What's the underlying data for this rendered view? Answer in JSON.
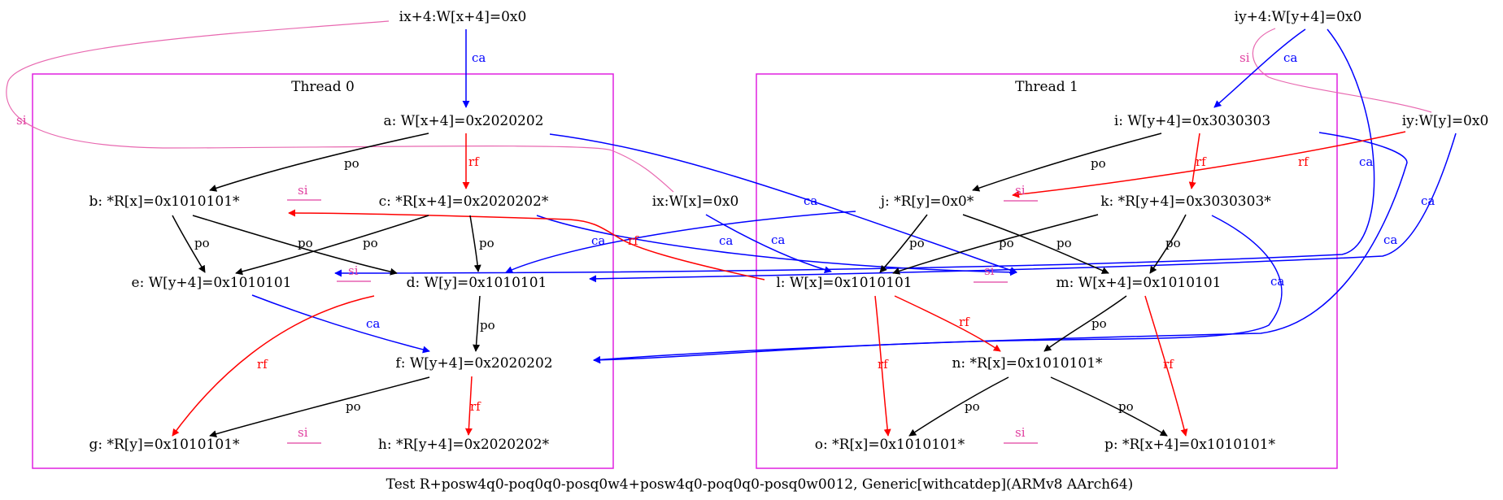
{
  "caption": "Test R+posw4q0-poq0q0-posq0w4+posw4q0-poq0q0-posq0w0012, Generic[withcatdep](ARMv8 AArch64)",
  "colors": {
    "cluster": "#e020e0",
    "po": "#000000",
    "rf": "#ff0000",
    "ca": "#0000ff",
    "si": "#e040a0"
  },
  "clusters": [
    {
      "id": "thread0",
      "label": "Thread 0"
    },
    {
      "id": "thread1",
      "label": "Thread 1"
    }
  ],
  "nodes": [
    {
      "id": "ix4",
      "label": "ix+4:W[x+4]=0x0"
    },
    {
      "id": "iy4",
      "label": "iy+4:W[y+4]=0x0"
    },
    {
      "id": "a",
      "label": "a: W[x+4]=0x2020202"
    },
    {
      "id": "ix",
      "label": "ix:W[x]=0x0"
    },
    {
      "id": "i",
      "label": "i: W[y+4]=0x3030303"
    },
    {
      "id": "iy",
      "label": "iy:W[y]=0x0"
    },
    {
      "id": "b",
      "label": "b: *R[x]=0x1010101*"
    },
    {
      "id": "c",
      "label": "c: *R[x+4]=0x2020202*"
    },
    {
      "id": "j",
      "label": "j: *R[y]=0x0*"
    },
    {
      "id": "k",
      "label": "k: *R[y+4]=0x3030303*"
    },
    {
      "id": "e",
      "label": "e: W[y+4]=0x1010101"
    },
    {
      "id": "d",
      "label": "d: W[y]=0x1010101"
    },
    {
      "id": "l",
      "label": "l: W[x]=0x1010101"
    },
    {
      "id": "m",
      "label": "m: W[x+4]=0x1010101"
    },
    {
      "id": "f",
      "label": "f: W[y+4]=0x2020202"
    },
    {
      "id": "n",
      "label": "n: *R[x]=0x1010101*"
    },
    {
      "id": "g",
      "label": "g: *R[y]=0x1010101*"
    },
    {
      "id": "h",
      "label": "h: *R[y+4]=0x2020202*"
    },
    {
      "id": "o",
      "label": "o: *R[x]=0x1010101*"
    },
    {
      "id": "p",
      "label": "p: *R[x+4]=0x1010101*"
    }
  ],
  "edges": [
    {
      "from": "ix4",
      "to": "a",
      "label": "ca"
    },
    {
      "from": "iy4",
      "to": "i",
      "label": "ca"
    },
    {
      "from": "a",
      "to": "b",
      "label": "po"
    },
    {
      "from": "a",
      "to": "c",
      "label": "rf"
    },
    {
      "from": "b",
      "to": "e",
      "label": "po"
    },
    {
      "from": "b",
      "to": "d",
      "label": "po"
    },
    {
      "from": "c",
      "to": "e",
      "label": "po"
    },
    {
      "from": "c",
      "to": "d",
      "label": "po"
    },
    {
      "from": "d",
      "to": "f",
      "label": "po"
    },
    {
      "from": "e",
      "to": "f",
      "label": "ca"
    },
    {
      "from": "d",
      "to": "g",
      "label": "rf"
    },
    {
      "from": "f",
      "to": "g",
      "label": "po"
    },
    {
      "from": "f",
      "to": "h",
      "label": "rf"
    },
    {
      "from": "i",
      "to": "j",
      "label": "po"
    },
    {
      "from": "i",
      "to": "k",
      "label": "rf"
    },
    {
      "from": "iy",
      "to": "j",
      "label": "rf"
    },
    {
      "from": "j",
      "to": "l",
      "label": "po"
    },
    {
      "from": "j",
      "to": "m",
      "label": "po"
    },
    {
      "from": "k",
      "to": "l",
      "label": "po"
    },
    {
      "from": "k",
      "to": "m",
      "label": "po"
    },
    {
      "from": "l",
      "to": "n",
      "label": "rf"
    },
    {
      "from": "l",
      "to": "o",
      "label": "rf"
    },
    {
      "from": "m",
      "to": "n",
      "label": "po"
    },
    {
      "from": "m",
      "to": "p",
      "label": "rf"
    },
    {
      "from": "n",
      "to": "o",
      "label": "po"
    },
    {
      "from": "n",
      "to": "p",
      "label": "po"
    },
    {
      "from": "l",
      "to": "b",
      "label": "rf"
    },
    {
      "from": "ix",
      "to": "l",
      "label": "ca"
    },
    {
      "from": "a",
      "to": "m",
      "label": "ca"
    },
    {
      "from": "c",
      "to": "m",
      "label": "ca"
    },
    {
      "from": "j",
      "to": "d",
      "label": "ca"
    },
    {
      "from": "iy4",
      "to": "e",
      "label": "ca"
    },
    {
      "from": "iy",
      "to": "d",
      "label": "ca"
    },
    {
      "from": "i",
      "to": "f",
      "label": "ca"
    },
    {
      "from": "k",
      "to": "f",
      "label": "ca"
    },
    {
      "from": "ix4",
      "to": "ix",
      "label": "si"
    },
    {
      "from": "iy4",
      "to": "iy",
      "label": "si"
    }
  ],
  "si_labels": [
    "si",
    "si",
    "si",
    "si",
    "si",
    "si",
    "si",
    "si"
  ]
}
